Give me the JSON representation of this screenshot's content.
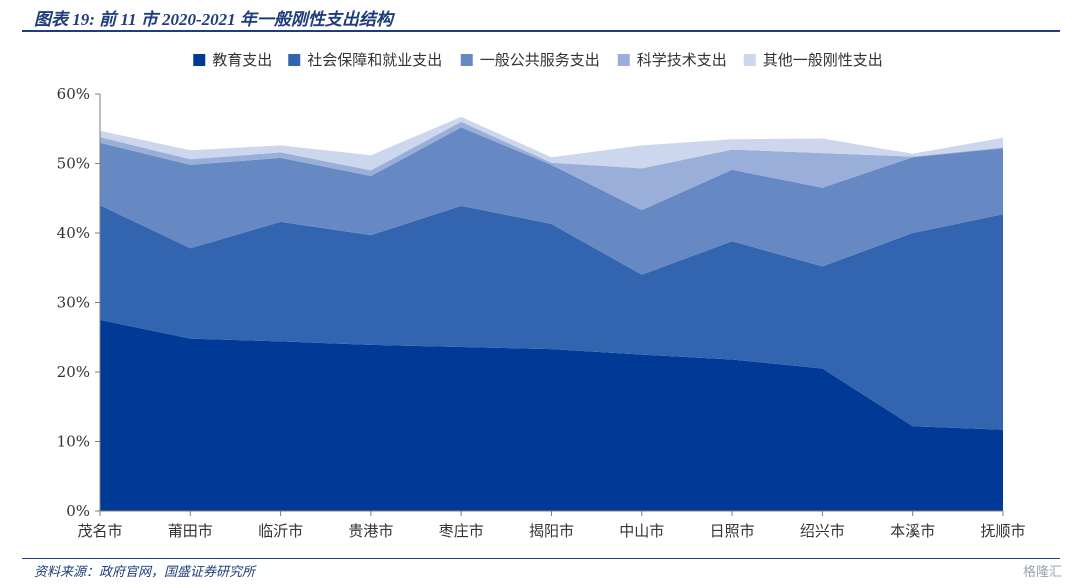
{
  "header": {
    "title": "图表 19: 前 11 市 2020-2021 年一般刚性支出结构"
  },
  "footer": {
    "source": "资料来源：政府官网，国盛证券研究所",
    "watermark": "格隆汇"
  },
  "chart_data": {
    "type": "area",
    "stacked": true,
    "categories": [
      "茂名市",
      "莆田市",
      "临沂市",
      "贵港市",
      "枣庄市",
      "揭阳市",
      "中山市",
      "日照市",
      "绍兴市",
      "本溪市",
      "抚顺市"
    ],
    "y_ticks": [
      "0%",
      "10%",
      "20%",
      "30%",
      "40%",
      "50%",
      "60%"
    ],
    "ylim": [
      0,
      60
    ],
    "legend_position": "top",
    "series": [
      {
        "name": "教育支出",
        "color": "#003a96",
        "values": [
          27.5,
          24.8,
          24.4,
          23.9,
          23.6,
          23.3,
          22.5,
          21.8,
          20.5,
          12.2,
          11.7
        ]
      },
      {
        "name": "社会保障和就业支出",
        "color": "#3364b0",
        "values": [
          16.5,
          13.0,
          17.2,
          15.8,
          20.3,
          18.0,
          11.5,
          17.0,
          14.7,
          27.8,
          31.0
        ]
      },
      {
        "name": "一般公共服务支出",
        "color": "#6689c4",
        "values": [
          9.0,
          12.0,
          9.2,
          8.5,
          11.3,
          8.5,
          9.3,
          10.3,
          11.3,
          10.9,
          9.5
        ]
      },
      {
        "name": "科学技术支出",
        "color": "#99aed8",
        "values": [
          0.8,
          0.8,
          0.8,
          0.8,
          0.8,
          0.3,
          6.0,
          2.9,
          5.0,
          0.1,
          0.1
        ]
      },
      {
        "name": "其他一般刚性支出",
        "color": "#ccd6ec",
        "values": [
          0.9,
          1.3,
          1.0,
          2.2,
          0.7,
          0.8,
          3.3,
          1.5,
          2.1,
          0.4,
          1.4
        ]
      }
    ]
  }
}
